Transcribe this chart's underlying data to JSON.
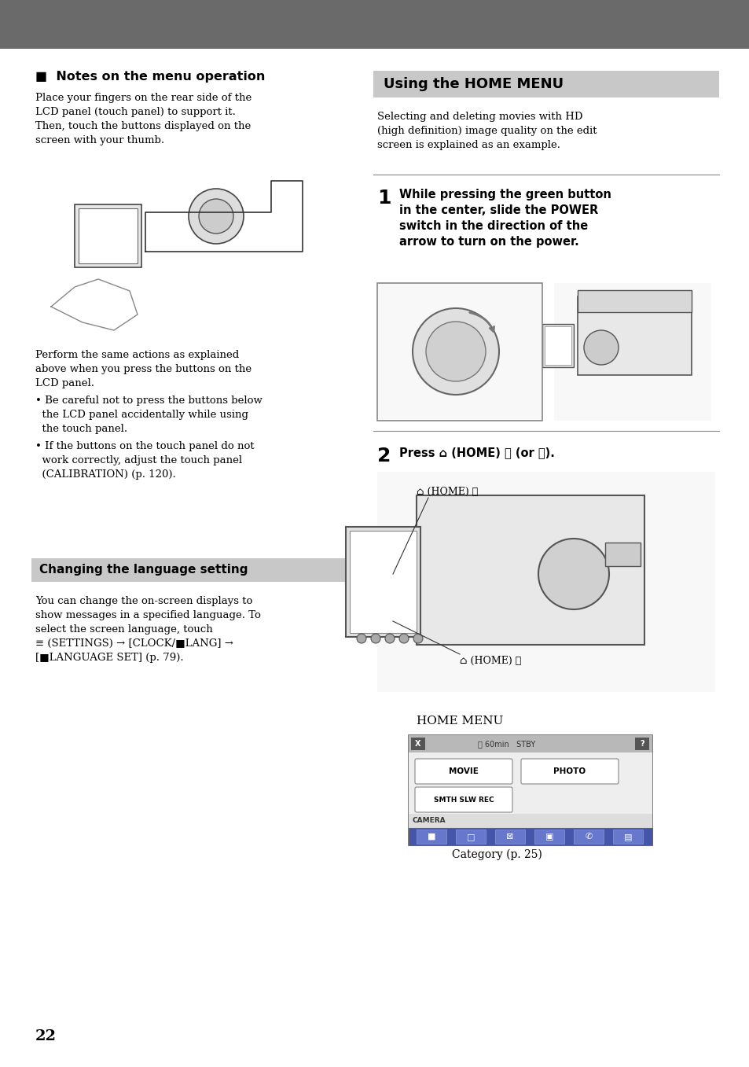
{
  "page_number": "22",
  "bg_color": "#ffffff",
  "header_color": "#6a6a6a",
  "section_bg_left": "#c8c8c8",
  "section_bg_right": "#c8c8c8",
  "notes_title": "■  Notes on the menu operation",
  "notes_body1_lines": [
    "Place your fingers on the rear side of the",
    "LCD panel (touch panel) to support it.",
    "Then, touch the buttons displayed on the",
    "screen with your thumb."
  ],
  "notes_body2_lines": [
    "Perform the same actions as explained",
    "above when you press the buttons on the",
    "LCD panel."
  ],
  "bullet1_lines": [
    "• Be careful not to press the buttons below",
    "  the LCD panel accidentally while using",
    "  the touch panel."
  ],
  "bullet2_lines": [
    "• If the buttons on the touch panel do not",
    "  work correctly, adjust the touch panel",
    "  (CALIBRATION) (p. 120)."
  ],
  "lang_title": "Changing the language setting",
  "lang_body_lines": [
    "You can change the on-screen displays to",
    "show messages in a specified language. To",
    "select the screen language, touch",
    "≡ (SETTINGS) → [CLOCK/■LANG] →",
    "[■LANGUAGE SET] (p. 79)."
  ],
  "home_title": "Using the HOME MENU",
  "home_body_lines": [
    "Selecting and deleting movies with HD",
    "(high definition) image quality on the edit",
    "screen is explained as an example."
  ],
  "step1_num": "1",
  "step1_lines": [
    "While pressing the green button",
    "in the center, slide the POWER",
    "switch in the direction of the",
    "arrow to turn on the power."
  ],
  "step2_num": "2",
  "step2_text": "Press ⌂ (HOME) Ⓐ (or Ⓑ).",
  "home_A_label": "⌂ (HOME) Ⓐ",
  "home_B_label": "⌂ (HOME) Ⓑ",
  "home_menu_label": "HOME MENU",
  "menu_top_text": "⌛ 60min   STBY",
  "menu_x_btn": "X",
  "menu_q_btn": "?",
  "movie_btn": "MOVIE",
  "photo_btn": "PHOTO",
  "smth_btn": "SMTH SLW REC",
  "camera_bar_label": "CAMERA",
  "category_label": "Category (p. 25)",
  "divider_color": "#888888",
  "menu_border_color": "#666666",
  "menu_topbar_color": "#b0b0b0",
  "menu_bg_color": "#e8e8e8",
  "menu_btn_color": "#ffffff",
  "menu_camera_bar_color": "#dddddd",
  "menu_icon_bar_color": "#555577",
  "body_fs": 9.5,
  "title_fs": 11.0,
  "step_num_fs": 18
}
